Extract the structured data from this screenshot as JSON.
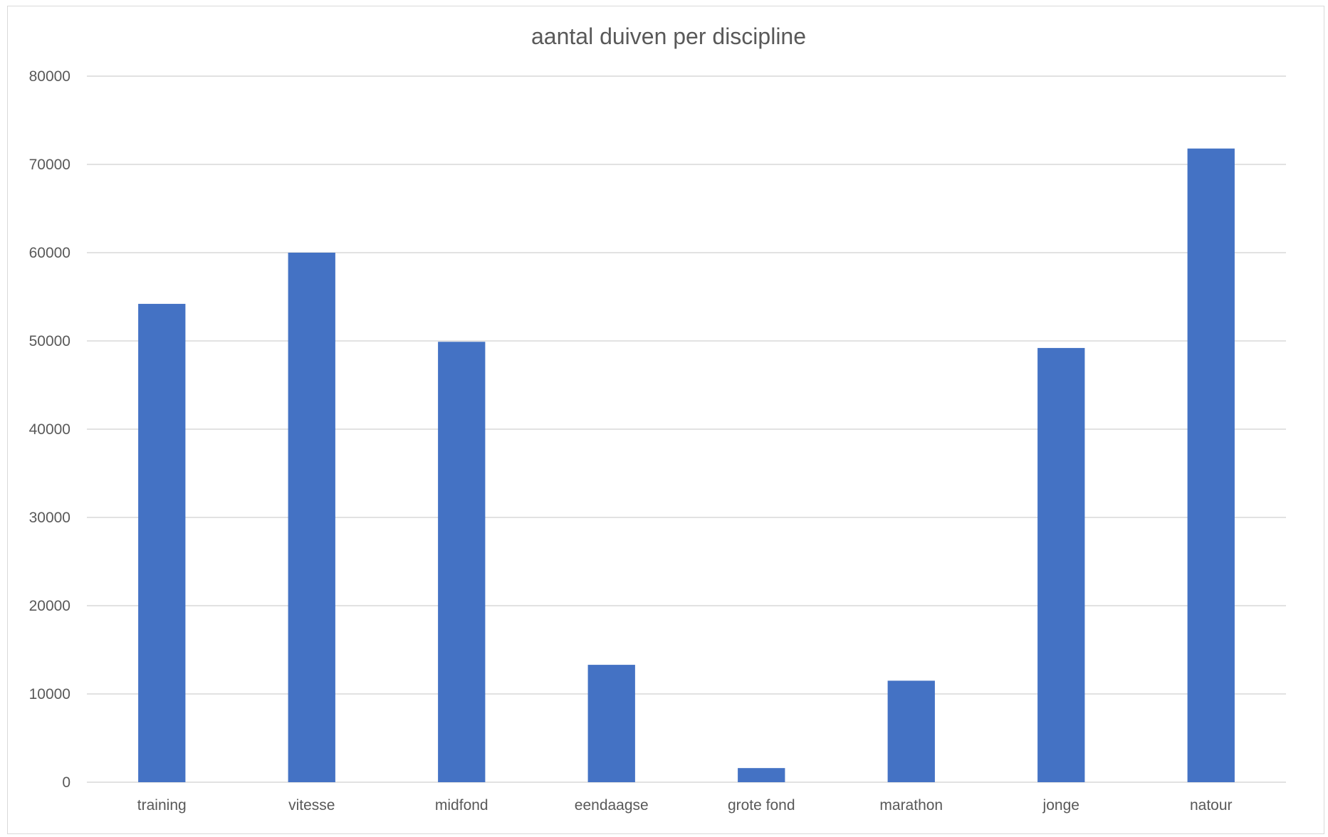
{
  "chart_data": {
    "type": "bar",
    "title": "aantal duiven per discipline",
    "xlabel": "",
    "ylabel": "",
    "categories": [
      "training",
      "vitesse",
      "midfond",
      "eendaagse",
      "grote fond",
      "marathon",
      "jonge",
      "natour"
    ],
    "values": [
      54200,
      60000,
      49900,
      13300,
      1600,
      11500,
      49200,
      71800
    ],
    "ylim": [
      0,
      80000
    ],
    "yticks": [
      0,
      10000,
      20000,
      30000,
      40000,
      50000,
      60000,
      70000,
      80000
    ],
    "ytick_labels": [
      "0",
      "10000",
      "20000",
      "30000",
      "40000",
      "50000",
      "60000",
      "70000",
      "80000"
    ],
    "grid": true,
    "legend": "none",
    "bar_color": "#4472C4"
  }
}
